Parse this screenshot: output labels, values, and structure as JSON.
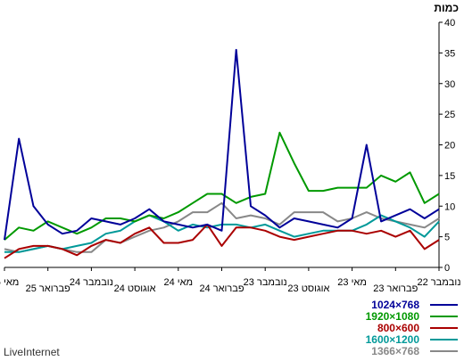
{
  "chart_data": {
    "type": "line",
    "title": "",
    "ylabel": "כמות",
    "ylim": [
      0,
      40
    ],
    "yticks": [
      0,
      5,
      10,
      15,
      20,
      25,
      30,
      35,
      40
    ],
    "x_direction": "right-to-left",
    "grid": false,
    "legend_position": "bottom-right",
    "x_tick_labels": [
      {
        "label": "נובמבר 22",
        "index": 0
      },
      {
        "label": "פברואר 23",
        "index": 3
      },
      {
        "label": "מאי 23",
        "index": 6
      },
      {
        "label": "אוגוסט 23",
        "index": 9
      },
      {
        "label": "נובמבר 23",
        "index": 12
      },
      {
        "label": "פברואר 24",
        "index": 15
      },
      {
        "label": "מאי 24",
        "index": 18
      },
      {
        "label": "אוגוסט 24",
        "index": 21
      },
      {
        "label": "נובמבר 24",
        "index": 24
      },
      {
        "label": "פברואר 25",
        "index": 27
      },
      {
        "label": "מאי 25",
        "index": 30
      }
    ],
    "series": [
      {
        "name": "1366×768",
        "color": "#888888",
        "values": [
          8,
          6.5,
          7,
          7.5,
          8,
          9,
          8,
          7.5,
          9,
          9,
          9,
          7,
          8,
          8.5,
          8,
          10.5,
          9,
          9,
          7.5,
          6.5,
          6,
          5,
          4,
          4.5,
          2.5,
          2.5,
          3,
          3.5,
          3,
          2.5,
          3
        ]
      },
      {
        "name": "1600×1200",
        "color": "#009999",
        "values": [
          7.5,
          5,
          6.5,
          7.5,
          8.5,
          7,
          6,
          6,
          6,
          5.5,
          5,
          6,
          7,
          6.5,
          7,
          7,
          6.5,
          7,
          6,
          7.5,
          8.5,
          7.5,
          6,
          5.5,
          4,
          3.5,
          3,
          3.5,
          3,
          2.5,
          2.5
        ]
      },
      {
        "name": "800×600",
        "color": "#aa0000",
        "values": [
          4.5,
          3,
          6,
          5,
          6,
          5.5,
          6,
          6,
          5.5,
          5,
          4.5,
          5,
          6,
          6.5,
          6.5,
          3.5,
          7,
          4.5,
          4,
          4,
          6.5,
          5.5,
          4,
          4.5,
          3.5,
          2,
          3,
          3.5,
          3.5,
          3,
          1.5
        ]
      },
      {
        "name": "1920×1080",
        "color": "#009900",
        "values": [
          12,
          10.5,
          15.5,
          14,
          15,
          13,
          13,
          13,
          12.5,
          12.5,
          17,
          22,
          12,
          11.5,
          10.5,
          12,
          12,
          10.5,
          9,
          8,
          8.5,
          7.5,
          8,
          8,
          6.5,
          5.5,
          6.5,
          7.5,
          6,
          6.5,
          4.5
        ]
      },
      {
        "name": "1024×768",
        "color": "#000099",
        "values": [
          9.5,
          8,
          9.5,
          8.5,
          7.5,
          20,
          8,
          6.5,
          7,
          7.5,
          8,
          6.5,
          8.5,
          10,
          35.5,
          6,
          7,
          6.5,
          7,
          7.5,
          9.5,
          8,
          7,
          7.5,
          8,
          6,
          5.5,
          7,
          10,
          21,
          4.5
        ]
      }
    ]
  },
  "footer": {
    "credit": "LiveInternet"
  }
}
